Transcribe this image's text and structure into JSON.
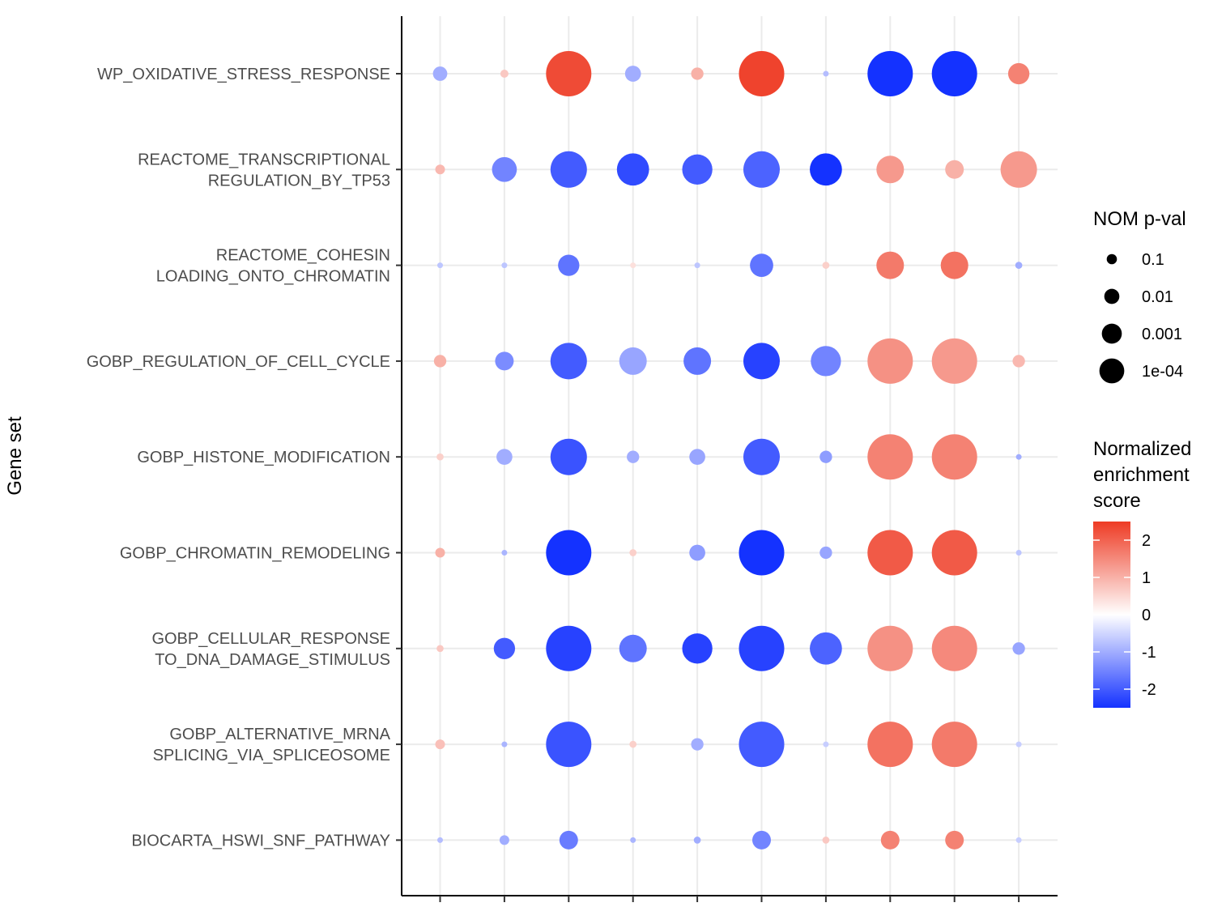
{
  "chart_data": {
    "type": "scatter",
    "title": "",
    "xlabel": "",
    "ylabel": "Gene set",
    "grid": true,
    "legend_position": "right",
    "gene_sets": [
      [
        "WP_OXIDATIVE_STRESS_RESPONSE"
      ],
      [
        "REACTOME_TRANSCRIPTIONAL",
        "REGULATION_BY_TP53"
      ],
      [
        "REACTOME_COHESIN",
        "LOADING_ONTO_CHROMATIN"
      ],
      [
        "GOBP_REGULATION_OF_CELL_CYCLE"
      ],
      [
        "GOBP_HISTONE_MODIFICATION"
      ],
      [
        "GOBP_CHROMATIN_REMODELING"
      ],
      [
        "GOBP_CELLULAR_RESPONSE",
        "TO_DNA_DAMAGE_STIMULUS"
      ],
      [
        "GOBP_ALTERNATIVE_MRNA",
        "SPLICING_VIA_SPLICEOSOME"
      ],
      [
        "BIOCARTA_HSWI_SNF_PATHWAY"
      ]
    ],
    "n_columns": 10,
    "nes": [
      [
        -1.0,
        0.7,
        2.3,
        -1.0,
        1.0,
        2.4,
        -0.8,
        -2.6,
        -2.5,
        1.6
      ],
      [
        0.9,
        -1.5,
        -2.0,
        -2.2,
        -2.0,
        -1.9,
        -2.6,
        1.3,
        1.0,
        1.3
      ],
      [
        -0.7,
        -0.7,
        -1.7,
        0.4,
        -0.7,
        -1.7,
        0.6,
        1.7,
        1.8,
        -1.0
      ],
      [
        1.0,
        -1.4,
        -2.0,
        -1.1,
        -1.7,
        -2.3,
        -1.5,
        1.4,
        1.3,
        0.9
      ],
      [
        0.6,
        -1.0,
        -2.1,
        -1.0,
        -1.1,
        -2.0,
        -1.2,
        1.6,
        1.6,
        -1.0
      ],
      [
        1.0,
        -0.9,
        -2.6,
        0.6,
        -1.2,
        -2.8,
        -1.1,
        2.1,
        2.1,
        -0.7
      ],
      [
        0.7,
        -2.0,
        -2.3,
        -1.7,
        -2.3,
        -2.3,
        -1.9,
        1.4,
        1.5,
        -1.1
      ],
      [
        0.8,
        -0.9,
        -2.1,
        0.6,
        -1.0,
        -2.0,
        -0.6,
        1.8,
        1.7,
        -0.6
      ],
      [
        -0.8,
        -1.0,
        -1.6,
        -0.9,
        -1.0,
        -1.5,
        0.7,
        1.6,
        1.6,
        -0.6
      ]
    ],
    "nom_pval": [
      [
        0.03,
        0.15,
        1e-05,
        0.02,
        0.05,
        1e-05,
        0.3,
        1e-05,
        1e-05,
        0.005
      ],
      [
        0.1,
        0.002,
        0.0001,
        0.0003,
        0.0005,
        0.0001,
        0.0003,
        0.001,
        0.01,
        0.0001
      ],
      [
        0.3,
        0.3,
        0.005,
        0.3,
        0.3,
        0.003,
        0.2,
        0.001,
        0.001,
        0.2
      ],
      [
        0.05,
        0.01,
        0.0001,
        0.001,
        0.001,
        0.0001,
        0.0005,
        1e-05,
        1e-05,
        0.05
      ],
      [
        0.2,
        0.02,
        0.0001,
        0.05,
        0.02,
        0.0001,
        0.05,
        1e-05,
        1e-05,
        0.3
      ],
      [
        0.1,
        0.3,
        1e-05,
        0.2,
        0.02,
        1e-05,
        0.05,
        1e-05,
        1e-05,
        0.3
      ],
      [
        0.2,
        0.005,
        1e-05,
        0.001,
        0.0005,
        1e-05,
        0.0003,
        1e-05,
        1e-05,
        0.05
      ],
      [
        0.1,
        0.3,
        1e-05,
        0.2,
        0.05,
        1e-05,
        0.3,
        1e-05,
        1e-05,
        0.3
      ],
      [
        0.3,
        0.1,
        0.01,
        0.3,
        0.2,
        0.01,
        0.2,
        0.01,
        0.01,
        0.3
      ]
    ],
    "size_legend": {
      "title": "NOM p-val",
      "entries": [
        {
          "label": "0.1",
          "value": 0.1
        },
        {
          "label": "0.01",
          "value": 0.01
        },
        {
          "label": "0.001",
          "value": 0.001
        },
        {
          "label": "1e-04",
          "value": 0.0001
        }
      ]
    },
    "color_legend": {
      "title": [
        "Normalized",
        "enrichment",
        "score"
      ],
      "range": [
        -2.5,
        2.5
      ],
      "ticks": [
        {
          "label": "2",
          "value": 2
        },
        {
          "label": "1",
          "value": 1
        },
        {
          "label": "0",
          "value": 0
        },
        {
          "label": "-1",
          "value": -1
        },
        {
          "label": "-2",
          "value": -2
        }
      ],
      "low_color": "#1432FF",
      "mid_color": "#FFFFFF",
      "high_color": "#EE3B24"
    }
  }
}
